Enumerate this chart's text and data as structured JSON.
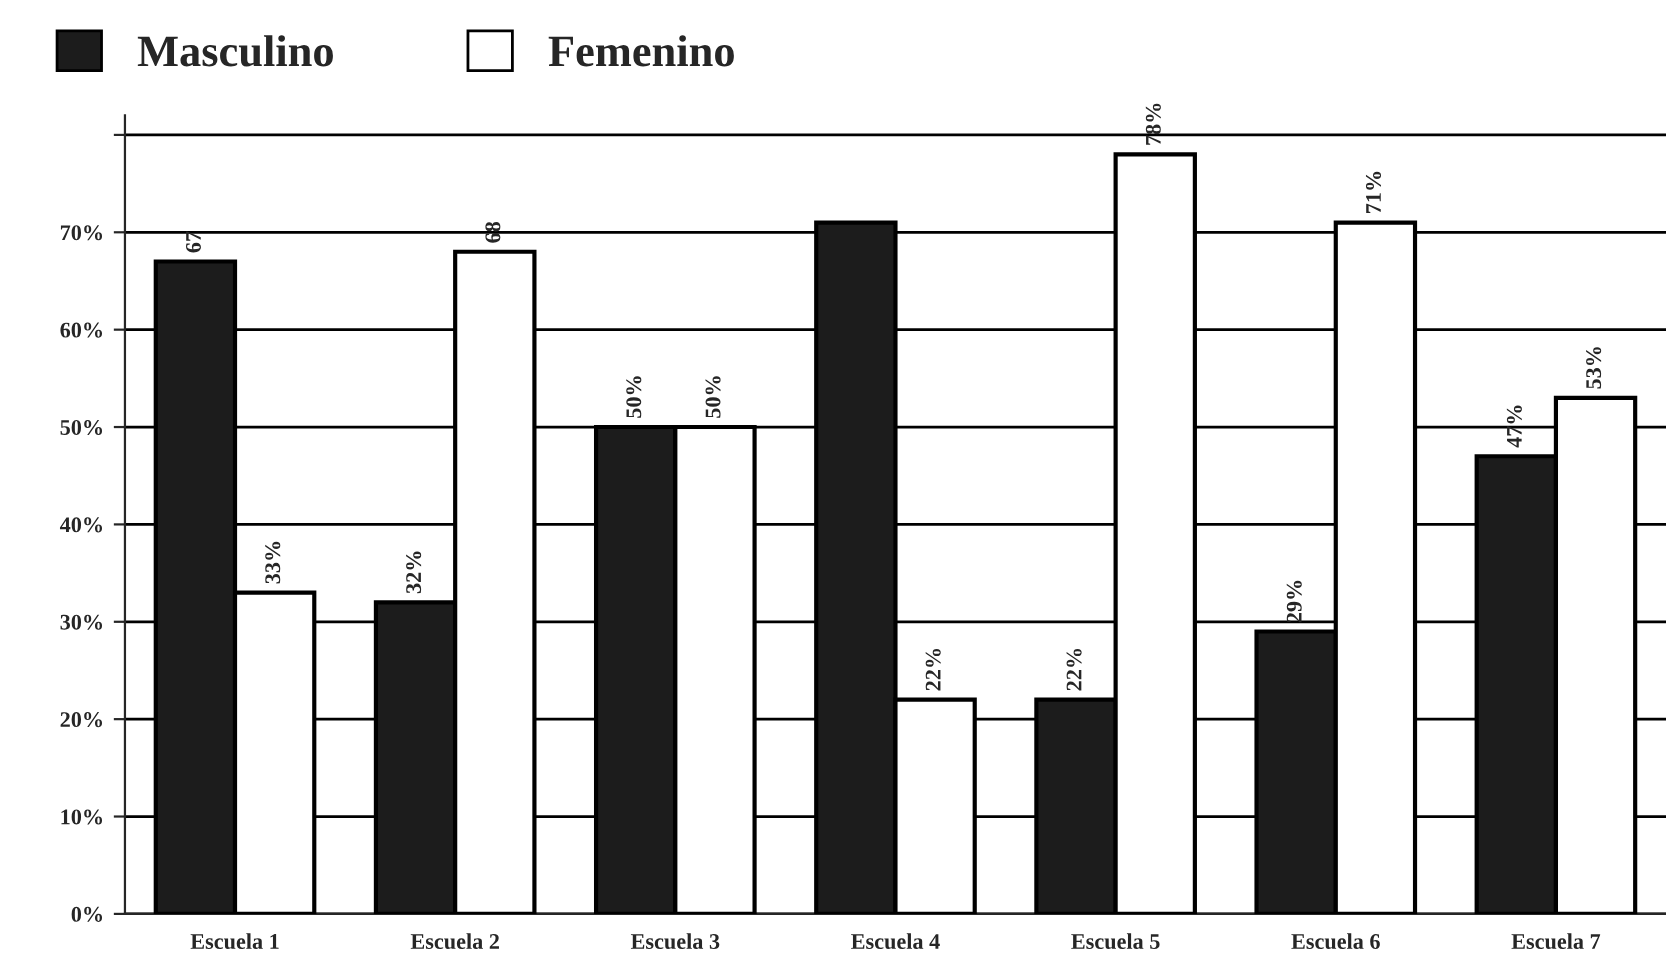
{
  "chart_data": {
    "type": "bar",
    "categories": [
      "Escuela 1",
      "Escuela 2",
      "Escuela 3",
      "Escuela 4",
      "Escuela 5",
      "Escuela 6",
      "Escuela 7"
    ],
    "series": [
      {
        "name": "Masculino",
        "color": "#1c1c1c",
        "values": [
          67,
          32,
          50,
          71,
          22,
          29,
          47
        ],
        "value_labels": [
          "67",
          "32%",
          "50%",
          null,
          "22%",
          "29%",
          "47%"
        ]
      },
      {
        "name": "Femenino",
        "color": "#ffffff",
        "values": [
          33,
          68,
          50,
          22,
          78,
          71,
          53
        ],
        "value_labels": [
          "33%",
          "68",
          "50%",
          "22%",
          "78%",
          "71%",
          "53%"
        ]
      }
    ],
    "ylim": [
      0,
      82
    ],
    "yticks": [
      {
        "value": 0,
        "label": "0%"
      },
      {
        "value": 10,
        "label": "10%"
      },
      {
        "value": 20,
        "label": "20%"
      },
      {
        "value": 30,
        "label": "30%"
      },
      {
        "value": 40,
        "label": "40%"
      },
      {
        "value": 50,
        "label": "50%"
      },
      {
        "value": 60,
        "label": "60%"
      },
      {
        "value": 70,
        "label": "70%"
      },
      {
        "value": 80,
        "label": null
      }
    ],
    "grid": "y",
    "legend": "top left"
  }
}
